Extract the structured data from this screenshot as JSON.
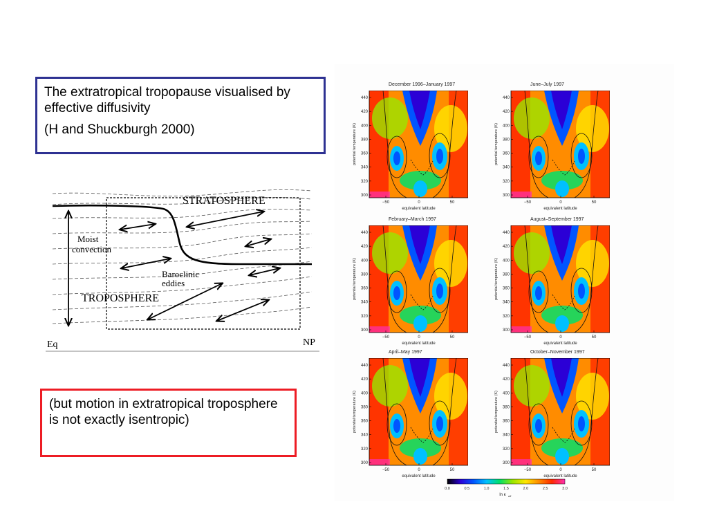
{
  "title_box": {
    "line1": "The extratropical tropopause visualised by effective diffusivity",
    "line2": "(H and Shuckburgh 2000)"
  },
  "note_box": {
    "text": "(but motion in extratropical troposphere is not exactly isentropic)"
  },
  "schematic": {
    "stratosphere": "STRATOSPHERE",
    "troposphere": "TROPOSPHERE",
    "moist_line1": "Moist",
    "moist_line2": "convection",
    "baroclinic_line1": "Baroclinic",
    "baroclinic_line2": "eddies",
    "eq": "Eq",
    "np": "NP"
  },
  "panels": [
    {
      "title": "December 1996–January 1997"
    },
    {
      "title": "June–July 1997"
    },
    {
      "title": "February–March 1997"
    },
    {
      "title": "August–September 1997"
    },
    {
      "title": "April–May 1997"
    },
    {
      "title": "October–November 1997"
    }
  ],
  "axes": {
    "ylabel": "potential temperature (K)",
    "xlabel": "equivalent latitude",
    "yticks": [
      "440",
      "420",
      "400",
      "380",
      "360",
      "340",
      "320",
      "300"
    ],
    "xticks": [
      "−50",
      "0",
      "50"
    ]
  },
  "colorbar": {
    "ticks": [
      "0.0",
      "0.5",
      "1.0",
      "1.5",
      "2.0",
      "2.5",
      "3.0"
    ],
    "label": "ln κ",
    "label_sub": "eff",
    "colors": [
      "#000000",
      "#2b00d6",
      "#0055ff",
      "#00c0ff",
      "#00e06a",
      "#9ae600",
      "#ffe600",
      "#ff8c00",
      "#ff2a00",
      "#ff2fb0"
    ]
  }
}
